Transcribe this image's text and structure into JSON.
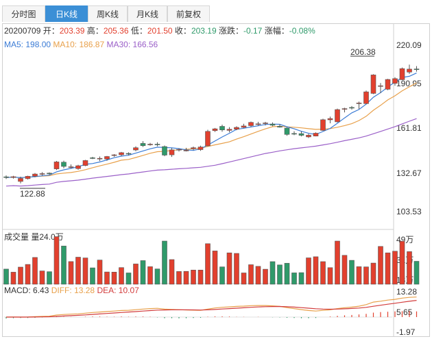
{
  "tabs": [
    {
      "label": "分时图",
      "active": false
    },
    {
      "label": "日K线",
      "active": true
    },
    {
      "label": "周K线",
      "active": false
    },
    {
      "label": "月K线",
      "active": false
    },
    {
      "label": "前复权",
      "active": false
    }
  ],
  "quote": {
    "date": "20200709",
    "open_label": "开：",
    "open": "203.39",
    "high_label": "高：",
    "high": "205.36",
    "low_label": "低：",
    "low": "201.50",
    "close_label": "收：",
    "close": "203.19",
    "change_label": "涨跌：",
    "change": "-0.17",
    "pct_label": "涨幅：",
    "pct": "-0.08%"
  },
  "ma": {
    "ma5_label": "MA5:",
    "ma5": "198.00",
    "ma10_label": "MA10:",
    "ma10": "186.87",
    "ma30_label": "MA30:",
    "ma30": "166.56"
  },
  "volume": {
    "title": "成交量",
    "label": "量",
    "value": "24.0万"
  },
  "macd": {
    "macd_label": "MACD:",
    "macd": "6.43",
    "diff_label": "DIFF:",
    "diff": "13.28",
    "dea_label": "DEA:",
    "dea": "10.07"
  },
  "colors": {
    "up": "#e2402e",
    "down": "#2f9a6a",
    "ma5": "#3a7bd5",
    "ma10": "#e8a04a",
    "ma30": "#9a5fc8",
    "accent": "#3b8fd6"
  },
  "chart_data": {
    "type": "candlestick",
    "price_axis": {
      "ticks": [
        "220.09",
        "190.95",
        "161.81",
        "132.67",
        "103.53"
      ],
      "ylim": [
        103.53,
        220.09
      ]
    },
    "volume_axis": {
      "ticks": [
        "49万",
        "31万",
        "13万"
      ],
      "unit": "万"
    },
    "macd_axis": {
      "ticks": [
        "13.28",
        "5.65",
        "-1.97"
      ]
    },
    "annotations": {
      "max": "206.38",
      "min": "122.88"
    },
    "ohlc": [
      [
        127.5,
        128.5,
        126.0,
        127.0
      ],
      [
        127.0,
        128.2,
        126.3,
        127.6
      ],
      [
        124.3,
        127.6,
        122.9,
        126.4
      ],
      [
        126.2,
        128.3,
        125.6,
        127.9
      ],
      [
        128.0,
        130.2,
        127.2,
        129.5
      ],
      [
        129.5,
        130.8,
        128.4,
        129.8
      ],
      [
        130.1,
        130.6,
        129.0,
        130.0
      ],
      [
        133.1,
        138.7,
        132.3,
        138.0
      ],
      [
        137.8,
        138.9,
        133.5,
        134.8
      ],
      [
        134.2,
        136.2,
        133.4,
        134.6
      ],
      [
        133.3,
        136.0,
        132.5,
        135.3
      ],
      [
        135.5,
        139.4,
        135.0,
        139.0
      ],
      [
        140.9,
        141.6,
        140.0,
        140.5
      ],
      [
        140.2,
        141.8,
        138.6,
        140.5
      ],
      [
        140.0,
        142.2,
        138.8,
        141.8
      ],
      [
        142.5,
        143.5,
        141.6,
        143.0
      ],
      [
        143.0,
        145.0,
        142.2,
        144.5
      ],
      [
        144.0,
        144.8,
        142.6,
        143.7
      ],
      [
        146.4,
        149.0,
        145.5,
        148.0
      ],
      [
        151.0,
        152.6,
        148.5,
        149.4
      ],
      [
        150.0,
        151.4,
        149.4,
        150.5
      ],
      [
        150.5,
        151.8,
        149.0,
        150.2
      ],
      [
        148.8,
        149.5,
        142.0,
        142.8
      ],
      [
        143.0,
        147.8,
        141.5,
        146.5
      ],
      [
        146.4,
        147.6,
        145.3,
        146.8
      ],
      [
        146.0,
        147.9,
        145.4,
        146.2
      ],
      [
        147.3,
        148.8,
        146.2,
        148.0
      ],
      [
        146.6,
        149.4,
        145.8,
        148.5
      ],
      [
        149.3,
        160.6,
        149.0,
        159.5
      ],
      [
        160.0,
        161.9,
        159.1,
        161.3
      ],
      [
        163.0,
        164.2,
        159.2,
        160.5
      ],
      [
        160.2,
        162.5,
        158.8,
        161.0
      ],
      [
        161.0,
        163.1,
        160.3,
        162.3
      ],
      [
        162.3,
        164.8,
        161.8,
        163.3
      ],
      [
        163.5,
        166.4,
        162.6,
        165.8
      ],
      [
        164.6,
        166.2,
        163.5,
        164.8
      ],
      [
        165.0,
        166.2,
        163.7,
        165.4
      ],
      [
        164.6,
        165.8,
        163.1,
        163.8
      ],
      [
        163.0,
        164.5,
        162.1,
        162.4
      ],
      [
        161.8,
        162.5,
        156.4,
        157.3
      ],
      [
        158.0,
        159.6,
        156.8,
        157.6
      ],
      [
        157.9,
        159.5,
        156.0,
        156.7
      ],
      [
        155.6,
        157.8,
        154.8,
        156.8
      ],
      [
        156.2,
        158.8,
        156.0,
        158.2
      ],
      [
        160.2,
        168.4,
        159.8,
        167.7
      ],
      [
        167.6,
        169.9,
        165.2,
        168.5
      ],
      [
        166.2,
        175.5,
        165.8,
        174.8
      ],
      [
        175.0,
        176.1,
        172.8,
        175.5
      ],
      [
        176.3,
        177.3,
        174.8,
        175.9
      ],
      [
        179.5,
        180.4,
        175.2,
        179.5
      ],
      [
        179.0,
        188.2,
        178.6,
        187.3
      ],
      [
        186.2,
        199.7,
        185.7,
        199.2
      ],
      [
        191.5,
        193.5,
        186.4,
        191.6
      ],
      [
        189.1,
        196.4,
        188.5,
        196.0
      ],
      [
        193.3,
        197.6,
        191.6,
        196.6
      ],
      [
        195.8,
        204.4,
        195.5,
        203.6
      ],
      [
        201.2,
        206.4,
        199.9,
        203.3
      ],
      [
        203.4,
        205.4,
        201.5,
        203.2
      ]
    ],
    "volume_wan": [
      15.8,
      12.6,
      17.9,
      20.7,
      28.0,
      13.9,
      13.1,
      49.8,
      40.0,
      23.7,
      28.3,
      27.5,
      17.1,
      25.3,
      12.8,
      12.7,
      17.4,
      11.8,
      21.2,
      24.7,
      18.3,
      16.0,
      45.1,
      25.8,
      13.3,
      13.5,
      14.8,
      14.8,
      42.4,
      34.8,
      18.1,
      32.8,
      32.2,
      11.8,
      20.4,
      18.7,
      15.7,
      23.6,
      20.2,
      21.9,
      11.9,
      12.1,
      27.6,
      28.7,
      23.6,
      17.3,
      45.1,
      30.2,
      25.0,
      18.3,
      18.1,
      22.1,
      39.5,
      32.8,
      34.5,
      45.0,
      34.1,
      24.0
    ],
    "macd_hist": [
      -0.8,
      -0.6,
      -0.5,
      -0.5,
      -0.4,
      -0.2,
      0.0,
      0.3,
      0.2,
      0.1,
      0.0,
      0.2,
      0.3,
      0.3,
      0.2,
      0.2,
      0.3,
      0.2,
      0.3,
      0.3,
      0.2,
      -0.2,
      -0.6,
      -0.6,
      -0.7,
      -0.6,
      -0.5,
      -0.4,
      0.2,
      0.4,
      0.4,
      0.3,
      0.1,
      0.1,
      0.0,
      0.1,
      0.0,
      -0.1,
      -0.2,
      -0.4,
      -0.5,
      -0.6,
      -0.6,
      -0.5,
      0.0,
      0.3,
      0.7,
      1.0,
      1.2,
      1.5,
      1.8,
      2.5,
      2.8,
      3.0,
      3.2,
      3.3,
      3.4,
      3.2
    ]
  }
}
